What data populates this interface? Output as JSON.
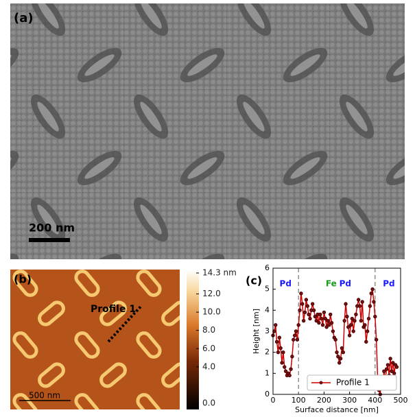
{
  "panel_a": {
    "label": "(a)",
    "scale_bar": "200 nm"
  },
  "panel_b": {
    "label": "(b)",
    "scale_bar": "500 nm",
    "annotation": "Profile 1",
    "colorbar": {
      "clim": [
        0,
        14.3
      ],
      "ticks": [
        {
          "value": 0,
          "label": "0.0"
        },
        {
          "value": 4,
          "label": "4.0"
        },
        {
          "value": 6,
          "label": "6.0"
        },
        {
          "value": 8,
          "label": "8.0"
        },
        {
          "value": 10,
          "label": "10.0"
        },
        {
          "value": 12,
          "label": "12.0"
        },
        {
          "value": 14.3,
          "label": "14.3 nm"
        }
      ]
    }
  },
  "chart_data": {
    "type": "line",
    "panel_label": "(c)",
    "xlabel": "Surface distance [nm]",
    "ylabel": "Height [nm]",
    "x": [
      0,
      5,
      10,
      15,
      20,
      25,
      30,
      35,
      40,
      45,
      50,
      55,
      60,
      65,
      70,
      75,
      80,
      85,
      90,
      95,
      100,
      105,
      110,
      115,
      120,
      125,
      130,
      135,
      140,
      145,
      150,
      155,
      160,
      165,
      170,
      175,
      180,
      185,
      190,
      195,
      200,
      205,
      210,
      215,
      220,
      225,
      230,
      235,
      240,
      245,
      250,
      255,
      260,
      265,
      270,
      275,
      280,
      285,
      290,
      295,
      300,
      305,
      310,
      315,
      320,
      325,
      330,
      335,
      340,
      345,
      350,
      355,
      360,
      365,
      370,
      375,
      380,
      385,
      390,
      395,
      400,
      405,
      410,
      415,
      420,
      425,
      430,
      435,
      440,
      445,
      450,
      455,
      460,
      465,
      470,
      475,
      480,
      485
    ],
    "series": [
      {
        "name": "Profile 1",
        "color": "#cc0000",
        "values": [
          2.8,
          3.0,
          3.3,
          2.5,
          2.0,
          2.7,
          2.2,
          1.5,
          2.0,
          1.3,
          1.1,
          0.9,
          1.0,
          0.9,
          1.2,
          1.8,
          2.6,
          2.8,
          3.0,
          2.6,
          3.3,
          4.0,
          4.8,
          4.3,
          3.5,
          3.9,
          4.5,
          4.2,
          3.8,
          3.6,
          4.0,
          4.3,
          4.0,
          3.7,
          3.5,
          3.8,
          3.4,
          3.8,
          3.6,
          3.3,
          3.9,
          3.6,
          3.2,
          3.5,
          3.3,
          3.8,
          3.4,
          3.0,
          2.7,
          2.6,
          2.0,
          1.8,
          1.5,
          1.7,
          2.2,
          2.0,
          3.5,
          4.3,
          3.7,
          3.2,
          2.8,
          3.3,
          3.6,
          3.0,
          3.5,
          3.8,
          4.2,
          4.5,
          4.2,
          3.5,
          4.4,
          3.2,
          3.3,
          2.5,
          3.0,
          3.6,
          4.2,
          4.8,
          5.0,
          4.4,
          3.7,
          2.6,
          0.8,
          0.2,
          0.0,
          0.8,
          0.5,
          1.1,
          0.7,
          1.2,
          1.4,
          0.9,
          1.7,
          1.1,
          1.5,
          1.0,
          1.4,
          1.3
        ]
      }
    ],
    "xlim": [
      0,
      500
    ],
    "xticks": [
      0,
      100,
      200,
      300,
      400,
      500
    ],
    "ylim": [
      0,
      6
    ],
    "yticks": [
      0,
      1,
      2,
      3,
      4,
      5,
      6
    ],
    "vlines": [
      100,
      400
    ],
    "annotations": [
      {
        "text": "Pd",
        "x": 49,
        "color": "#1a1aff"
      },
      {
        "text": "Fe",
        "x": 228,
        "color": "#1a9a1a"
      },
      {
        "text": "Pd",
        "x": 283,
        "color": "#1a1aff"
      },
      {
        "text": "Pd",
        "x": 454,
        "color": "#1a1aff"
      }
    ],
    "legend": "lower right"
  }
}
